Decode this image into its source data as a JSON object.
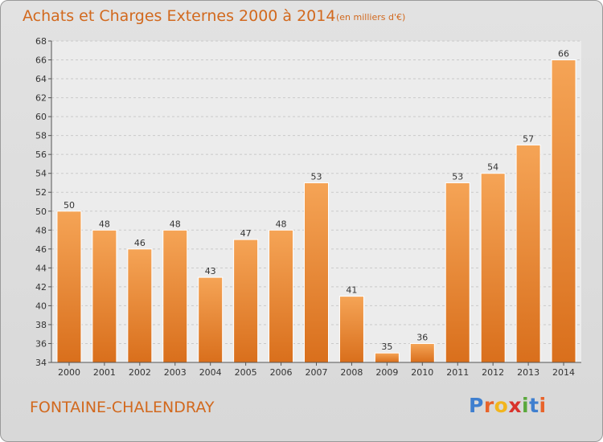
{
  "chart_data": {
    "type": "bar",
    "title": "Achats et Charges Externes 2000 à 2014",
    "subtitle": "(en milliers d'€)",
    "categories": [
      "2000",
      "2001",
      "2002",
      "2003",
      "2004",
      "2005",
      "2006",
      "2007",
      "2008",
      "2009",
      "2010",
      "2011",
      "2012",
      "2013",
      "2014"
    ],
    "values": [
      50,
      48,
      46,
      48,
      43,
      47,
      48,
      53,
      41,
      35,
      36,
      53,
      54,
      57,
      66
    ],
    "ylim": [
      34,
      68
    ],
    "yticks": [
      34,
      36,
      38,
      40,
      42,
      44,
      46,
      48,
      50,
      52,
      54,
      56,
      58,
      60,
      62,
      64,
      66,
      68
    ],
    "grid": true,
    "bar_color": "#e8842f"
  },
  "place_name": "FONTAINE-CHALENDRAY",
  "logo": {
    "letters": [
      "P",
      "r",
      "o",
      "x",
      "i",
      "t",
      "i"
    ],
    "colors": [
      "#3f7fcf",
      "#e8632a",
      "#f2b51d",
      "#d9332c",
      "#5aa83c",
      "#3f7fcf",
      "#e8632a"
    ]
  }
}
